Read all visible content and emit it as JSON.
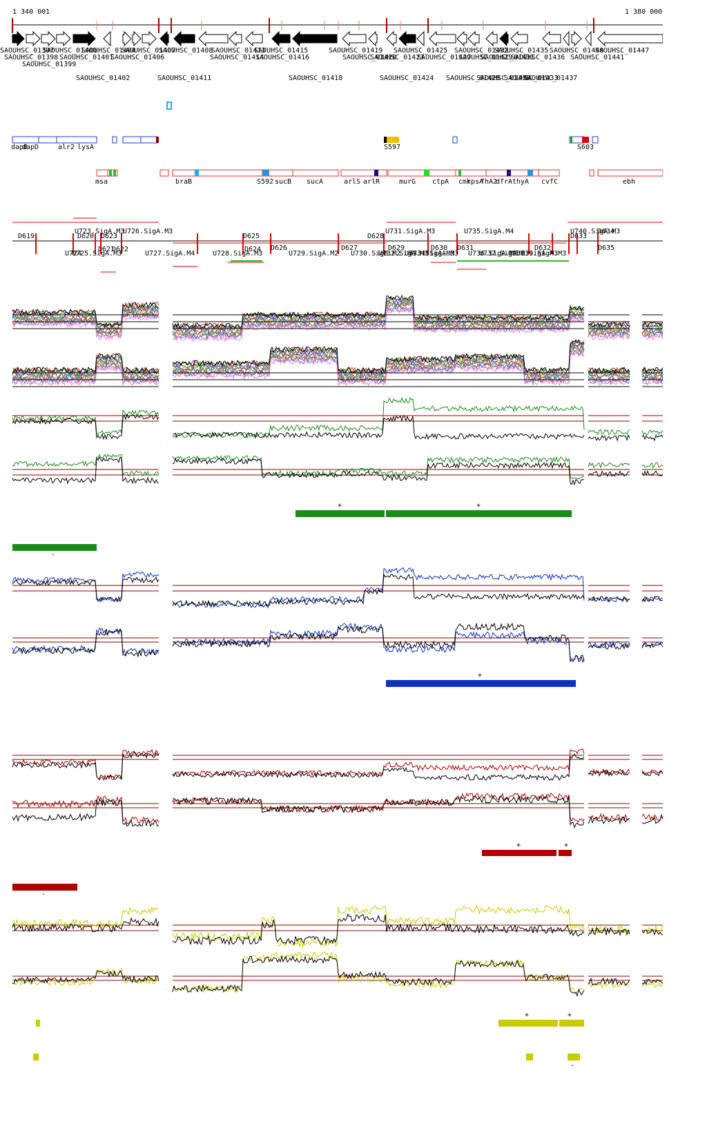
{
  "ruler": {
    "start_label": "1 340 001",
    "end_label": "1 380 000"
  },
  "genes_top": [
    "SAOUHSC_01397",
    "SAOUHSC_01400",
    "SAOUHSC_01404",
    "SAOUHSC_01407",
    "SAOUHSC_01408",
    "SAOUHSC_01413",
    "SAOUHSC_01415",
    "SAOUHSC_01419",
    "SAOUHSC_01425",
    "SAOUHSC_01432",
    "SAOUHSC_01435",
    "SAOUHSC_01440",
    "SAOUHSC_01447"
  ],
  "genes_mid": [
    "SAOUHSC_01398",
    "SAOUHSC_01401",
    "SAOUHSC_01406",
    "SAOUHSC_01414",
    "SAOUHSC_01416",
    "SAOUHSC_01420",
    "SAOUHSC_01423",
    "SAOUHSC_01427",
    "SAOUHSC_01429",
    "SAOUHSC_01431",
    "SAOUHSC_01436",
    "SAOUHSC_01441"
  ],
  "genes_row3": [
    "SAOUHSC_01399"
  ],
  "genes_bottom": [
    "SAOUHSC_01402",
    "SAOUHSC_01411",
    "SAOUHSC_01418",
    "SAOUHSC_01424",
    "SAOUHSC_01428",
    "SAOUHSC_01430",
    "SAOUHSC_01433",
    "SAOUHSC_01437"
  ],
  "blue_track": [
    "dapB",
    "dapD",
    "alr2",
    "lysA",
    "S597",
    "S603"
  ],
  "red_track": [
    "msa",
    "braB",
    "S592",
    "sucB",
    "sucA",
    "arlS",
    "arlR",
    "murG",
    "ctpA",
    "cmk",
    "rpsA",
    "fhA2",
    "dfrA",
    "thyA",
    "cvfC",
    "ebh"
  ],
  "region_row1": [
    "D619",
    "U723.SigA.M3",
    "D620",
    "U726.SigA.M3",
    "D625",
    "D628",
    "U731.SigA.M3",
    "U735.SigA.M4",
    "U740.SigA.M3",
    "D633",
    "D634"
  ],
  "region_row2": [
    "U724",
    "U725.SigA.M3",
    "D621",
    "D622",
    "D623",
    "U727.SigA.M4",
    "U728.SigA.M3",
    "D624",
    "D626",
    "U729.SigA.M2",
    "D627",
    "U730.SigB.M2",
    "U732.SigA.M3",
    "D629",
    "U733.SigA.M3",
    "U734.SigA.M3",
    "D630",
    "D631",
    "U736.SigA.M3",
    "U737.SigA.M3",
    "U738.SigA.M3",
    "U739.SigA.M3",
    "D632",
    "D635"
  ],
  "symbols": {
    "plus": "+",
    "minus": "-"
  },
  "colors": {
    "green": "#1a8c1a",
    "blue": "#1030c0",
    "red": "#b00000",
    "yellow": "#c8cc00",
    "black": "#000000",
    "threshold": "#8b0000",
    "blue_track": "#1a3cc8",
    "red_track": "#e03030",
    "cyan": "#20b0e0"
  }
}
